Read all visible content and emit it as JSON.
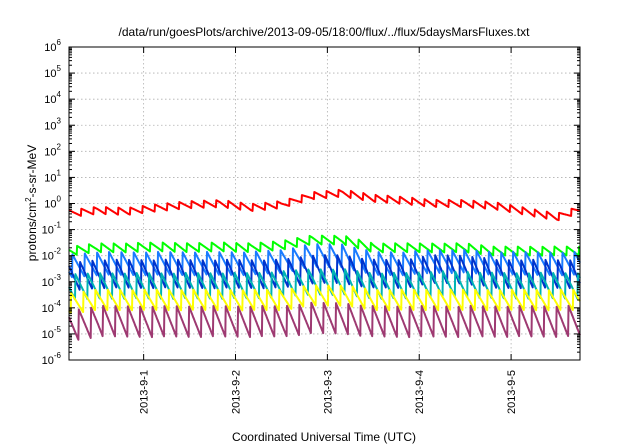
{
  "chart_data": {
    "type": "line",
    "title": "/data/run/goesPlots/archive/2013-09-05/18:00/flux/../flux/5daysMarsFluxes.txt",
    "xlabel": "Coordinated Universal Time (UTC)",
    "ylabel": {
      "base": "protons/cm",
      "sup": "2",
      "rest": "-s-sr-MeV"
    },
    "yscale": "log",
    "ylim": [
      -6,
      6
    ],
    "xlim": [
      "2013-08-31T04:30",
      "2013-09-05T18:00"
    ],
    "grid": true,
    "y_ticks": [
      {
        "base": "10",
        "exp": "6"
      },
      {
        "base": "10",
        "exp": "5"
      },
      {
        "base": "10",
        "exp": "4"
      },
      {
        "base": "10",
        "exp": "3"
      },
      {
        "base": "10",
        "exp": "2"
      },
      {
        "base": "10",
        "exp": "1"
      },
      {
        "base": "10",
        "exp": "0"
      },
      {
        "base": "10",
        "exp": "-1"
      },
      {
        "base": "10",
        "exp": "-2"
      },
      {
        "base": "10",
        "exp": "-3"
      },
      {
        "base": "10",
        "exp": "-4"
      },
      {
        "base": "10",
        "exp": "-5"
      },
      {
        "base": "10",
        "exp": "-6"
      }
    ],
    "x_ticks": [
      {
        "label": "2013-9-1",
        "date": "2013-09-01"
      },
      {
        "label": "2013-9-2",
        "date": "2013-09-02"
      },
      {
        "label": "2013-9-3",
        "date": "2013-09-03"
      },
      {
        "label": "2013-9-4",
        "date": "2013-09-04"
      },
      {
        "label": "2013-9-5",
        "date": "2013-09-05"
      }
    ],
    "series": [
      {
        "color": "#ff0000",
        "x": [
          "2013-08-31T04:30",
          "2013-08-31T12:00",
          "2013-08-31T20:00",
          "2013-09-01T04:00",
          "2013-09-01T12:00",
          "2013-09-01T20:00",
          "2013-09-02T04:00",
          "2013-09-02T12:00",
          "2013-09-02T20:00",
          "2013-09-03T04:00",
          "2013-09-03T12:00",
          "2013-09-03T20:00",
          "2013-09-04T04:00",
          "2013-09-04T12:00",
          "2013-09-04T20:00",
          "2013-09-05T04:00",
          "2013-09-05T12:00",
          "2013-09-05T18:00"
        ],
        "y": [
          0.4,
          0.55,
          0.5,
          0.7,
          0.9,
          1.0,
          0.7,
          0.9,
          2.0,
          2.5,
          1.6,
          1.3,
          1.0,
          1.0,
          0.8,
          0.5,
          0.3,
          0.6
        ]
      },
      {
        "color": "#00ff00",
        "x": [
          "2013-08-31T04:30",
          "2013-08-31T12:00",
          "2013-08-31T20:00",
          "2013-09-01T04:00",
          "2013-09-01T12:00",
          "2013-09-01T20:00",
          "2013-09-02T04:00",
          "2013-09-02T12:00",
          "2013-09-02T20:00",
          "2013-09-03T04:00",
          "2013-09-03T12:00",
          "2013-09-03T20:00",
          "2013-09-04T04:00",
          "2013-09-04T12:00",
          "2013-09-04T20:00",
          "2013-09-05T04:00",
          "2013-09-05T12:00",
          "2013-09-05T18:00"
        ],
        "y": [
          0.015,
          0.02,
          0.02,
          0.022,
          0.02,
          0.022,
          0.02,
          0.025,
          0.04,
          0.04,
          0.02,
          0.02,
          0.02,
          0.02,
          0.015,
          0.015,
          0.015,
          0.015
        ]
      },
      {
        "color": "#1a7bff",
        "x": [
          "2013-08-31T04:30",
          "2013-08-31T12:00",
          "2013-08-31T20:00",
          "2013-09-01T04:00",
          "2013-09-01T12:00",
          "2013-09-01T20:00",
          "2013-09-02T04:00",
          "2013-09-02T12:00",
          "2013-09-02T20:00",
          "2013-09-03T04:00",
          "2013-09-03T12:00",
          "2013-09-03T20:00",
          "2013-09-04T04:00",
          "2013-09-04T12:00",
          "2013-09-04T20:00",
          "2013-09-05T04:00",
          "2013-09-05T12:00",
          "2013-09-05T18:00"
        ],
        "y": [
          0.004,
          0.005,
          0.005,
          0.005,
          0.005,
          0.005,
          0.005,
          0.006,
          0.01,
          0.01,
          0.005,
          0.005,
          0.006,
          0.006,
          0.005,
          0.005,
          0.005,
          0.005
        ]
      },
      {
        "color": "#0033cc",
        "x": [
          "2013-08-31T04:30",
          "2013-08-31T12:00",
          "2013-08-31T20:00",
          "2013-09-01T04:00",
          "2013-09-01T12:00",
          "2013-09-01T20:00",
          "2013-09-02T04:00",
          "2013-09-02T12:00",
          "2013-09-02T20:00",
          "2013-09-03T04:00",
          "2013-09-03T12:00",
          "2013-09-03T20:00",
          "2013-09-04T04:00",
          "2013-09-04T12:00",
          "2013-09-04T20:00",
          "2013-09-05T04:00",
          "2013-09-05T12:00",
          "2013-09-05T18:00"
        ],
        "y": [
          0.0015,
          0.002,
          0.002,
          0.002,
          0.002,
          0.002,
          0.002,
          0.002,
          0.003,
          0.003,
          0.002,
          0.002,
          0.003,
          0.003,
          0.002,
          0.002,
          0.002,
          0.002
        ]
      },
      {
        "color": "#00b3b3",
        "x": [
          "2013-08-31T04:30",
          "2013-08-31T12:00",
          "2013-08-31T20:00",
          "2013-09-01T04:00",
          "2013-09-01T12:00",
          "2013-09-01T20:00",
          "2013-09-02T04:00",
          "2013-09-02T12:00",
          "2013-09-02T20:00",
          "2013-09-03T04:00",
          "2013-09-03T12:00",
          "2013-09-03T20:00",
          "2013-09-04T04:00",
          "2013-09-04T12:00",
          "2013-09-04T20:00",
          "2013-09-05T04:00",
          "2013-09-05T12:00",
          "2013-09-05T18:00"
        ],
        "y": [
          0.0006,
          0.0007,
          0.0007,
          0.0007,
          0.0007,
          0.0007,
          0.0007,
          0.0008,
          0.001,
          0.001,
          0.0007,
          0.0007,
          0.0008,
          0.0008,
          0.0007,
          0.0007,
          0.0007,
          0.0007
        ]
      },
      {
        "color": "#ffff00",
        "x": [
          "2013-08-31T04:30",
          "2013-08-31T12:00",
          "2013-08-31T20:00",
          "2013-09-01T04:00",
          "2013-09-01T12:00",
          "2013-09-01T20:00",
          "2013-09-02T04:00",
          "2013-09-02T12:00",
          "2013-09-02T20:00",
          "2013-09-03T04:00",
          "2013-09-03T12:00",
          "2013-09-03T20:00",
          "2013-09-04T04:00",
          "2013-09-04T12:00",
          "2013-09-04T20:00",
          "2013-09-05T04:00",
          "2013-09-05T12:00",
          "2013-09-05T18:00"
        ],
        "y": [
          0.00015,
          0.0002,
          0.0002,
          0.0002,
          0.0002,
          0.0002,
          0.0002,
          0.0002,
          0.0003,
          0.0003,
          0.0002,
          0.0002,
          0.0002,
          0.0002,
          0.0002,
          0.0002,
          0.0002,
          0.0002
        ]
      },
      {
        "color": "#9e3a72",
        "x": [
          "2013-08-31T04:30",
          "2013-08-31T12:00",
          "2013-08-31T20:00",
          "2013-09-01T04:00",
          "2013-09-01T12:00",
          "2013-09-01T20:00",
          "2013-09-02T04:00",
          "2013-09-02T12:00",
          "2013-09-02T20:00",
          "2013-09-03T04:00",
          "2013-09-03T12:00",
          "2013-09-03T20:00",
          "2013-09-04T04:00",
          "2013-09-04T12:00",
          "2013-09-04T20:00",
          "2013-09-05T04:00",
          "2013-09-05T12:00",
          "2013-09-05T18:00"
        ],
        "y": [
          2e-05,
          3e-05,
          3e-05,
          3e-05,
          3e-05,
          3e-05,
          3e-05,
          3e-05,
          4e-05,
          4e-05,
          3e-05,
          3e-05,
          3e-05,
          3e-05,
          3e-05,
          3e-05,
          3e-05,
          3e-05
        ]
      }
    ]
  }
}
